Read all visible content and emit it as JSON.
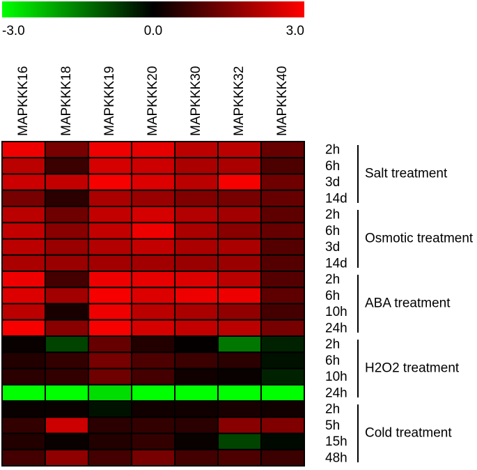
{
  "chart_data": {
    "type": "heatmap",
    "columns": [
      "MAPKKK16",
      "MAPKKK18",
      "MAPKKK19",
      "MAPKKK20",
      "MAPKKK30",
      "MAPKKK32",
      "MAPKKK40"
    ],
    "groups": [
      {
        "name": "Salt treatment",
        "rows": [
          "2h",
          "6h",
          "3d",
          "14d"
        ],
        "values": [
          [
            2.8,
            1.4,
            2.8,
            2.7,
            2.2,
            2.2,
            1.2
          ],
          [
            2.2,
            0.7,
            2.5,
            2.4,
            2.0,
            2.0,
            0.9
          ],
          [
            2.4,
            2.3,
            2.9,
            2.6,
            2.2,
            2.9,
            1.3
          ],
          [
            1.4,
            0.5,
            2.0,
            1.8,
            1.5,
            1.4,
            1.2
          ]
        ]
      },
      {
        "name": "Osmotic treatment",
        "rows": [
          "2h",
          "6h",
          "3d",
          "14d"
        ],
        "values": [
          [
            2.2,
            1.3,
            2.3,
            2.5,
            2.1,
            1.9,
            1.1
          ],
          [
            2.3,
            1.6,
            2.3,
            2.8,
            2.0,
            1.6,
            1.2
          ],
          [
            2.2,
            1.8,
            2.1,
            2.3,
            2.0,
            2.0,
            1.0
          ],
          [
            2.0,
            1.8,
            1.9,
            1.9,
            1.8,
            1.8,
            1.0
          ]
        ]
      },
      {
        "name": "ABA treatment",
        "rows": [
          "2h",
          "6h",
          "10h",
          "24h"
        ],
        "values": [
          [
            2.8,
            0.8,
            2.8,
            2.7,
            2.6,
            2.2,
            1.0
          ],
          [
            2.6,
            1.9,
            2.9,
            2.6,
            2.8,
            2.8,
            1.1
          ],
          [
            2.2,
            0.3,
            2.8,
            2.2,
            2.0,
            1.7,
            0.8
          ],
          [
            2.9,
            1.6,
            2.9,
            2.5,
            2.3,
            2.2,
            1.4
          ]
        ]
      },
      {
        "name": "H2O2 treatment",
        "rows": [
          "2h",
          "6h",
          "10h",
          "24h"
        ],
        "values": [
          [
            0.1,
            -0.8,
            1.2,
            0.4,
            0.05,
            -1.4,
            -0.4
          ],
          [
            0.4,
            0.6,
            1.4,
            0.9,
            0.7,
            0.5,
            -0.2
          ],
          [
            0.5,
            0.6,
            1.3,
            0.8,
            0.2,
            0.1,
            -0.4
          ],
          [
            -3.0,
            -3.0,
            -2.6,
            -3.0,
            -3.0,
            -3.0,
            -3.0
          ]
        ]
      },
      {
        "name": "Cold treatment",
        "rows": [
          "2h",
          "5h",
          "15h",
          "48h"
        ],
        "values": [
          [
            0.1,
            0.1,
            -0.2,
            0.2,
            0.2,
            0.3,
            0.2
          ],
          [
            0.6,
            2.4,
            0.5,
            0.6,
            0.5,
            1.6,
            1.5
          ],
          [
            0.4,
            0.1,
            0.4,
            0.6,
            0.1,
            -0.8,
            -0.1
          ],
          [
            0.8,
            1.7,
            0.8,
            1.4,
            0.8,
            0.9,
            0.7
          ]
        ]
      }
    ],
    "zlim": [
      -3,
      3
    ],
    "zticks": [
      {
        "value": -3,
        "label": "-3.0"
      },
      {
        "value": 0,
        "label": "0.0"
      },
      {
        "value": 3,
        "label": "3.0"
      }
    ],
    "colors": {
      "low": "#00ff00",
      "mid": "#000000",
      "high": "#ff0000"
    }
  }
}
